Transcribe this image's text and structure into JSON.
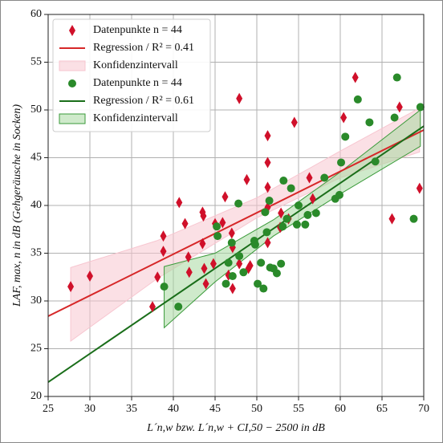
{
  "chart_data": {
    "type": "scatter",
    "xlabel": "L´n,w bzw. L´n,w + CI,50 − 2500 in dB",
    "ylabel": "LAF, max, n in dB (Gehgeräusche in Socken)",
    "xlim": [
      25,
      70
    ],
    "ylim": [
      20,
      60
    ],
    "xticks": [
      25,
      30,
      35,
      40,
      45,
      50,
      55,
      60,
      65,
      70
    ],
    "yticks": [
      20,
      25,
      30,
      35,
      40,
      45,
      50,
      55,
      60
    ],
    "grid": true,
    "legend": "upper left",
    "series": [
      {
        "name": "Datenpunkte n = 44",
        "kind": "points",
        "marker": "diamond",
        "color": "#d0102a",
        "x": [
          27.7,
          30.0,
          37.5,
          38.1,
          38.8,
          38.8,
          40.7,
          41.4,
          41.8,
          41.9,
          43.5,
          43.6,
          43.5,
          43.7,
          43.9,
          44.8,
          45.0,
          45.9,
          46.2,
          46.6,
          47.0,
          47.1,
          47.1,
          47.9,
          47.9,
          48.8,
          49.0,
          49.2,
          51.3,
          51.3,
          51.3,
          51.3,
          51.3,
          52.9,
          52.8,
          53.8,
          54.5,
          56.3,
          56.7,
          60.4,
          61.8,
          66.2,
          67.1,
          69.5
        ],
        "values": [
          31.5,
          32.6,
          29.4,
          32.5,
          35.2,
          36.8,
          40.3,
          38.1,
          34.6,
          33.0,
          39.3,
          38.9,
          36.0,
          33.4,
          31.8,
          33.9,
          38.1,
          38.2,
          40.9,
          32.7,
          37.1,
          31.3,
          35.6,
          33.9,
          51.2,
          42.7,
          33.4,
          33.7,
          39.8,
          36.1,
          41.9,
          44.5,
          47.3,
          39.2,
          37.7,
          38.6,
          48.7,
          42.9,
          40.7,
          49.2,
          53.4,
          38.6,
          50.3,
          41.8
        ]
      },
      {
        "name": "Regression / R² = 0.41",
        "kind": "line",
        "color": "#d62728",
        "x": [
          25,
          70
        ],
        "values": [
          28.4,
          47.9
        ]
      },
      {
        "name": "Konfidenzintervall",
        "kind": "band",
        "color": "#f7c6d0",
        "edge": "#f7c6d0",
        "x": [
          27.7,
          38,
          50,
          60,
          69.5
        ],
        "lower": [
          25.8,
          32.3,
          38.7,
          42.9,
          45.6
        ],
        "upper": [
          33.5,
          36.3,
          40.8,
          45.7,
          50.2
        ]
      },
      {
        "name": "Datenpunkte n = 44",
        "kind": "points",
        "marker": "circle",
        "color": "#2a8a2a",
        "x": [
          38.9,
          40.6,
          45.2,
          45.3,
          46.3,
          46.6,
          47.0,
          47.1,
          47.8,
          47.9,
          48.4,
          49.7,
          49.8,
          50.1,
          50.5,
          50.8,
          51.0,
          51.2,
          51.5,
          51.6,
          52.0,
          52.4,
          52.9,
          53.1,
          53.2,
          53.6,
          54.1,
          54.8,
          55.0,
          55.8,
          56.1,
          57.1,
          58.1,
          59.4,
          59.9,
          60.1,
          60.6,
          62.1,
          63.5,
          64.2,
          66.5,
          66.8,
          68.8,
          69.6
        ],
        "values": [
          31.5,
          29.4,
          37.8,
          36.8,
          31.8,
          34.0,
          36.1,
          32.6,
          40.2,
          34.7,
          33.0,
          36.3,
          35.9,
          31.8,
          34.0,
          31.3,
          39.3,
          37.2,
          40.5,
          33.5,
          33.4,
          32.9,
          33.9,
          37.8,
          42.6,
          38.6,
          41.8,
          38.0,
          40.0,
          38.0,
          39.0,
          39.2,
          42.9,
          40.7,
          41.1,
          44.5,
          47.2,
          51.1,
          48.7,
          44.6,
          49.2,
          53.4,
          38.6,
          50.3
        ]
      },
      {
        "name": "Regression / R² = 0.61",
        "kind": "line",
        "color": "#1a6e1a",
        "x": [
          25,
          70
        ],
        "values": [
          21.5,
          48.3
        ]
      },
      {
        "name": "Konfidenzintervall",
        "kind": "band",
        "color": "#a8d8a0",
        "edge": "#3a9a3a",
        "x": [
          38.9,
          45,
          52,
          60,
          69.6
        ],
        "lower": [
          27.2,
          32.0,
          36.8,
          41.2,
          46.2
        ],
        "upper": [
          33.6,
          35.0,
          38.5,
          43.5,
          50.0
        ]
      }
    ]
  }
}
